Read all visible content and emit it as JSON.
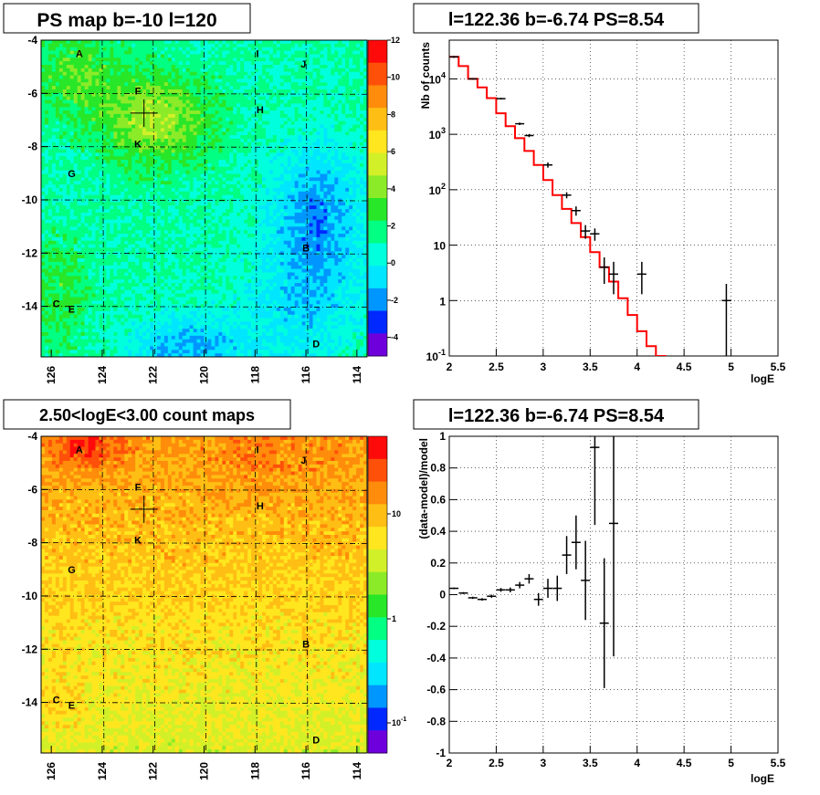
{
  "chart_data": [
    {
      "id": "ps_map",
      "type": "heatmap",
      "title": "PS map b=-10 l=120",
      "xlim": [
        126.4,
        113.6
      ],
      "ylim": [
        -15.9,
        -4
      ],
      "x_ticks": [
        "126",
        "124",
        "122",
        "120",
        "118",
        "116",
        "114"
      ],
      "y_ticks": [
        "-4",
        "-6",
        "-8",
        "-10",
        "-12",
        "-14"
      ],
      "colorbar": {
        "min": -5,
        "max": 12,
        "ticks": [
          "-4",
          "-2",
          "0",
          "2",
          "4",
          "6",
          "8",
          "10",
          "12"
        ]
      },
      "grid": "dashed grid lines",
      "marker": {
        "l": 122.36,
        "b": -6.74
      },
      "sources": [
        {
          "label": "A",
          "l": 124.9,
          "b": -4.5
        },
        {
          "label": "I",
          "l": 117.9,
          "b": -4.5
        },
        {
          "label": "J",
          "l": 116.1,
          "b": -4.9
        },
        {
          "label": "F",
          "l": 122.6,
          "b": -5.9
        },
        {
          "label": "H",
          "l": 117.8,
          "b": -6.6
        },
        {
          "label": "K",
          "l": 122.6,
          "b": -7.9
        },
        {
          "label": "G",
          "l": 125.2,
          "b": -9.0
        },
        {
          "label": "B",
          "l": 116.0,
          "b": -11.8
        },
        {
          "label": "C",
          "l": 125.8,
          "b": -13.9
        },
        {
          "label": "E",
          "l": 125.2,
          "b": -14.1
        },
        {
          "label": "D",
          "l": 115.6,
          "b": -15.4
        }
      ]
    },
    {
      "id": "spectrum",
      "type": "line",
      "title": "l=122.36 b=-6.74 PS=8.54",
      "xlabel": "logE",
      "ylabel": "Nb of counts",
      "xlim": [
        2,
        5.5
      ],
      "ylim": [
        0.1,
        50000
      ],
      "yscale": "log",
      "x_ticks": [
        "2",
        "2.5",
        "3",
        "3.5",
        "4",
        "4.5",
        "5",
        "5.5"
      ],
      "y_ticks": [
        {
          "v": 0.1,
          "t": "10",
          "sup": "-1"
        },
        {
          "v": 1,
          "t": "1",
          "sup": ""
        },
        {
          "v": 10,
          "t": "10",
          "sup": ""
        },
        {
          "v": 100,
          "t": "10",
          "sup": "2"
        },
        {
          "v": 1000,
          "t": "10",
          "sup": "3"
        },
        {
          "v": 10000,
          "t": "10",
          "sup": "4"
        }
      ],
      "grid": true,
      "model_color": "#ff0000",
      "model_bins": {
        "edges": [
          2.0,
          2.1,
          2.2,
          2.3,
          2.4,
          2.5,
          2.6,
          2.7,
          2.8,
          2.9,
          3.0,
          3.1,
          3.2,
          3.3,
          3.4,
          3.5,
          3.6,
          3.7,
          3.8,
          3.9,
          4.0,
          4.1,
          4.2,
          4.3,
          4.4,
          4.5,
          4.6,
          4.7,
          4.8,
          4.9,
          5.0,
          5.1,
          5.2,
          5.3,
          5.4,
          5.5
        ],
        "values": [
          25000,
          17000,
          10000,
          7000,
          4500,
          2400,
          1400,
          850,
          500,
          280,
          150,
          80,
          45,
          25,
          14,
          7.5,
          4,
          2.2,
          1.1,
          0.55,
          0.28,
          0.15,
          0.1,
          0.09,
          0.09,
          0.09,
          0.09,
          0.09,
          0.09,
          0.09,
          0.09,
          0.09,
          0.09,
          0.09,
          0.09
        ]
      },
      "data_points": [
        {
          "x": 2.05,
          "y": 25000,
          "lo": 24000,
          "hi": 26000
        },
        {
          "x": 2.25,
          "y": 10000,
          "lo": 9700,
          "hi": 10300
        },
        {
          "x": 2.55,
          "y": 4400,
          "lo": 4250,
          "hi": 4550
        },
        {
          "x": 2.75,
          "y": 1550,
          "lo": 1470,
          "hi": 1630
        },
        {
          "x": 2.85,
          "y": 950,
          "lo": 890,
          "hi": 1010
        },
        {
          "x": 3.05,
          "y": 280,
          "lo": 250,
          "hi": 310
        },
        {
          "x": 3.25,
          "y": 80,
          "lo": 70,
          "hi": 90
        },
        {
          "x": 3.35,
          "y": 42,
          "lo": 34,
          "hi": 50
        },
        {
          "x": 3.45,
          "y": 18,
          "lo": 13,
          "hi": 23
        },
        {
          "x": 3.55,
          "y": 16,
          "lo": 12,
          "hi": 20
        },
        {
          "x": 3.65,
          "y": 4,
          "lo": 2,
          "hi": 6
        },
        {
          "x": 3.75,
          "y": 3,
          "lo": 1.3,
          "hi": 5
        },
        {
          "x": 4.05,
          "y": 3,
          "lo": 1.3,
          "hi": 5
        },
        {
          "x": 4.95,
          "y": 1,
          "lo": 0.1,
          "hi": 2
        }
      ]
    },
    {
      "id": "count_map",
      "type": "heatmap",
      "title": "2.50<logE<3.00 count maps",
      "xlim": [
        126.4,
        113.6
      ],
      "ylim": [
        -15.9,
        -4
      ],
      "x_ticks": [
        "126",
        "124",
        "122",
        "120",
        "118",
        "116",
        "114"
      ],
      "y_ticks": [
        "-4",
        "-6",
        "-8",
        "-10",
        "-12",
        "-14"
      ],
      "colorbar": {
        "scale": "log",
        "ticks": [
          {
            "t": "10",
            "sup": ""
          },
          {
            "t": "1",
            "sup": ""
          },
          {
            "t": "10",
            "sup": "-1"
          }
        ]
      },
      "grid": "dashed grid lines",
      "marker": {
        "l": 122.36,
        "b": -6.74
      },
      "sources_same_as": "ps_map"
    },
    {
      "id": "residuals",
      "type": "scatter",
      "title": "l=122.36 b=-6.74 PS=8.54",
      "xlabel": "logE",
      "ylabel": "(data-model)/model",
      "xlim": [
        2,
        5.5
      ],
      "ylim": [
        -1,
        1
      ],
      "x_ticks": [
        "2",
        "2.5",
        "3",
        "3.5",
        "4",
        "4.5",
        "5",
        "5.5"
      ],
      "y_ticks": [
        "1",
        "0.8",
        "0.6",
        "0.4",
        "0.2",
        "0",
        "-0.2",
        "-0.4",
        "-0.6",
        "-0.8",
        "-1"
      ],
      "grid": true,
      "points": [
        {
          "x": 2.05,
          "y": 0.04,
          "e": 0.005
        },
        {
          "x": 2.15,
          "y": 0.01,
          "e": 0.006
        },
        {
          "x": 2.25,
          "y": -0.02,
          "e": 0.007
        },
        {
          "x": 2.35,
          "y": -0.03,
          "e": 0.008
        },
        {
          "x": 2.45,
          "y": -0.01,
          "e": 0.01
        },
        {
          "x": 2.55,
          "y": 0.03,
          "e": 0.012
        },
        {
          "x": 2.65,
          "y": 0.03,
          "e": 0.015
        },
        {
          "x": 2.75,
          "y": 0.06,
          "e": 0.02
        },
        {
          "x": 2.85,
          "y": 0.1,
          "e": 0.03
        },
        {
          "x": 2.95,
          "y": -0.03,
          "e": 0.04
        },
        {
          "x": 3.05,
          "y": 0.04,
          "e": 0.06
        },
        {
          "x": 3.15,
          "y": 0.04,
          "e": 0.08
        },
        {
          "x": 3.25,
          "y": 0.25,
          "e": 0.12
        },
        {
          "x": 3.35,
          "y": 0.33,
          "e": 0.17
        },
        {
          "x": 3.45,
          "y": 0.09,
          "e": 0.25
        },
        {
          "x": 3.55,
          "y": 0.93,
          "e": 0.49
        },
        {
          "x": 3.65,
          "y": -0.18,
          "e": 0.41
        },
        {
          "x": 3.75,
          "y": 0.45,
          "e": 0.84
        }
      ]
    }
  ]
}
